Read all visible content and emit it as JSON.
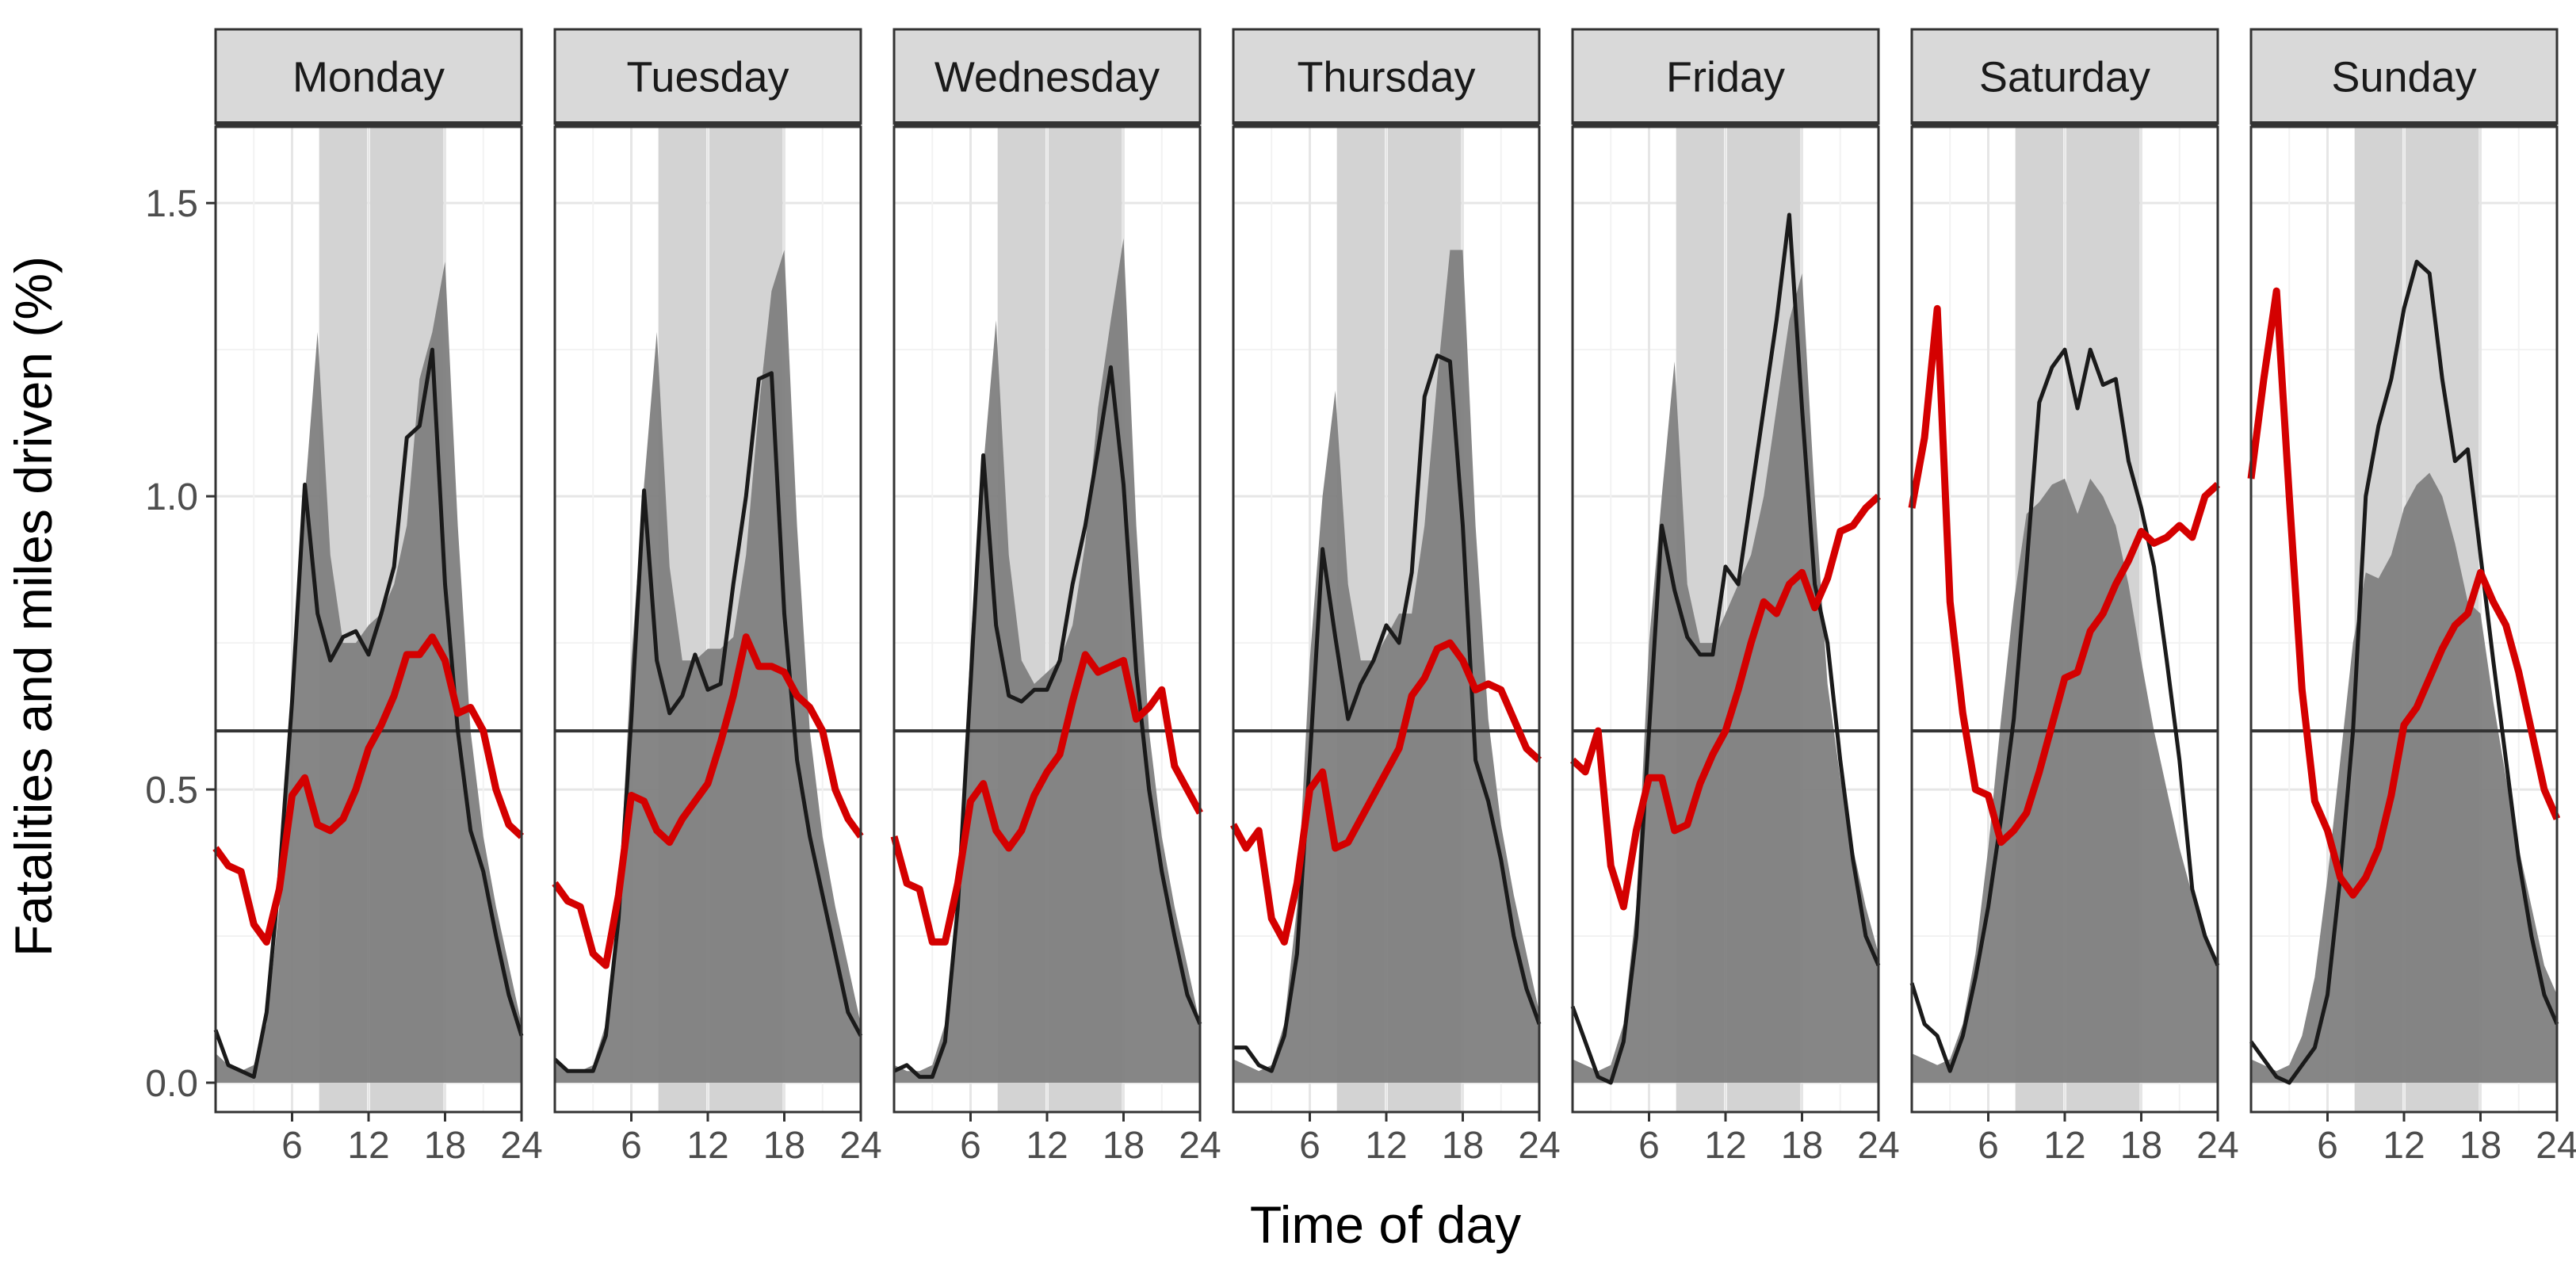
{
  "chart_data": {
    "type": "area",
    "xlabel": "Time of day",
    "ylabel": "Fatalities and miles driven (%)",
    "xlim": [
      0,
      24
    ],
    "ylim": [
      -0.05,
      1.63
    ],
    "x_ticks": [
      6,
      12,
      18,
      24
    ],
    "x_tick_labels": [
      "6",
      "12",
      "18",
      "24"
    ],
    "y_ticks": [
      0.0,
      0.5,
      1.0,
      1.5
    ],
    "y_tick_labels": [
      "0.0",
      "0.5",
      "1.0",
      "1.5"
    ],
    "reference_line": 0.6,
    "highlight_bands": [
      [
        8,
        12
      ],
      [
        12,
        18
      ]
    ],
    "grid": true,
    "colors": {
      "miles_area": "#7f7f7f",
      "highlight_band": "#d3d3d3",
      "all_fatalities_line": "#1a1a1a",
      "red_line": "#d40000",
      "reference_line": "#333333",
      "strip_fill": "#d9d9d9"
    },
    "x": [
      0,
      1,
      2,
      3,
      4,
      5,
      6,
      7,
      8,
      9,
      10,
      11,
      12,
      13,
      14,
      15,
      16,
      17,
      18,
      19,
      20,
      21,
      22,
      23,
      24
    ],
    "panels": [
      {
        "day": "Monday",
        "area": [
          0.05,
          0.03,
          0.02,
          0.03,
          0.1,
          0.3,
          0.7,
          1.0,
          1.28,
          0.9,
          0.75,
          0.75,
          0.78,
          0.8,
          0.85,
          0.95,
          1.2,
          1.28,
          1.4,
          0.95,
          0.6,
          0.42,
          0.3,
          0.2,
          0.1
        ],
        "black": [
          0.09,
          0.03,
          0.02,
          0.01,
          0.12,
          0.35,
          0.65,
          1.02,
          0.8,
          0.72,
          0.76,
          0.77,
          0.73,
          0.8,
          0.88,
          1.1,
          1.12,
          1.25,
          0.85,
          0.6,
          0.43,
          0.36,
          0.25,
          0.15,
          0.08
        ],
        "red": [
          0.4,
          0.37,
          0.36,
          0.27,
          0.24,
          0.33,
          0.49,
          0.52,
          0.44,
          0.43,
          0.45,
          0.5,
          0.57,
          0.61,
          0.66,
          0.73,
          0.73,
          0.76,
          0.72,
          0.63,
          0.64,
          0.6,
          0.5,
          0.44,
          0.42
        ]
      },
      {
        "day": "Tuesday",
        "area": [
          0.04,
          0.02,
          0.02,
          0.03,
          0.1,
          0.3,
          0.72,
          1.02,
          1.28,
          0.88,
          0.72,
          0.72,
          0.74,
          0.74,
          0.76,
          0.9,
          1.15,
          1.35,
          1.42,
          0.95,
          0.6,
          0.42,
          0.3,
          0.2,
          0.1
        ],
        "black": [
          0.04,
          0.02,
          0.02,
          0.02,
          0.08,
          0.28,
          0.62,
          1.01,
          0.72,
          0.63,
          0.66,
          0.73,
          0.67,
          0.68,
          0.85,
          1.0,
          1.2,
          1.21,
          0.8,
          0.55,
          0.42,
          0.32,
          0.22,
          0.12,
          0.08
        ],
        "red": [
          0.34,
          0.31,
          0.3,
          0.22,
          0.2,
          0.32,
          0.49,
          0.48,
          0.43,
          0.41,
          0.45,
          0.48,
          0.51,
          0.58,
          0.66,
          0.76,
          0.71,
          0.71,
          0.7,
          0.66,
          0.64,
          0.6,
          0.5,
          0.45,
          0.42
        ]
      },
      {
        "day": "Wednesday",
        "area": [
          0.03,
          0.02,
          0.02,
          0.03,
          0.1,
          0.3,
          0.75,
          1.05,
          1.3,
          0.9,
          0.72,
          0.68,
          0.7,
          0.72,
          0.78,
          0.92,
          1.15,
          1.3,
          1.44,
          0.95,
          0.6,
          0.42,
          0.3,
          0.2,
          0.1
        ],
        "black": [
          0.02,
          0.03,
          0.01,
          0.01,
          0.07,
          0.3,
          0.68,
          1.07,
          0.78,
          0.66,
          0.65,
          0.67,
          0.67,
          0.72,
          0.85,
          0.95,
          1.08,
          1.22,
          1.02,
          0.7,
          0.5,
          0.36,
          0.25,
          0.15,
          0.1
        ],
        "red": [
          0.42,
          0.34,
          0.33,
          0.24,
          0.24,
          0.34,
          0.48,
          0.51,
          0.43,
          0.4,
          0.43,
          0.49,
          0.53,
          0.56,
          0.65,
          0.73,
          0.7,
          0.71,
          0.72,
          0.62,
          0.64,
          0.67,
          0.54,
          0.5,
          0.46
        ]
      },
      {
        "day": "Thursday",
        "area": [
          0.04,
          0.03,
          0.02,
          0.03,
          0.1,
          0.3,
          0.72,
          1.0,
          1.18,
          0.85,
          0.72,
          0.72,
          0.76,
          0.8,
          0.8,
          0.95,
          1.2,
          1.42,
          1.42,
          0.95,
          0.62,
          0.44,
          0.32,
          0.22,
          0.12
        ],
        "black": [
          0.06,
          0.06,
          0.03,
          0.02,
          0.08,
          0.22,
          0.55,
          0.91,
          0.76,
          0.62,
          0.68,
          0.72,
          0.78,
          0.75,
          0.87,
          1.17,
          1.24,
          1.23,
          0.95,
          0.55,
          0.48,
          0.38,
          0.25,
          0.16,
          0.1
        ],
        "red": [
          0.44,
          0.4,
          0.43,
          0.28,
          0.24,
          0.34,
          0.5,
          0.53,
          0.4,
          0.41,
          0.45,
          0.49,
          0.53,
          0.57,
          0.66,
          0.69,
          0.74,
          0.75,
          0.72,
          0.67,
          0.68,
          0.67,
          0.62,
          0.57,
          0.55
        ]
      },
      {
        "day": "Friday",
        "area": [
          0.04,
          0.03,
          0.02,
          0.03,
          0.1,
          0.3,
          0.75,
          1.0,
          1.23,
          0.85,
          0.75,
          0.75,
          0.8,
          0.85,
          0.9,
          1.0,
          1.15,
          1.3,
          1.38,
          1.0,
          0.68,
          0.52,
          0.4,
          0.3,
          0.22
        ],
        "black": [
          0.13,
          0.07,
          0.01,
          0.0,
          0.07,
          0.25,
          0.6,
          0.95,
          0.84,
          0.76,
          0.73,
          0.73,
          0.88,
          0.85,
          1.0,
          1.15,
          1.3,
          1.48,
          1.15,
          0.85,
          0.75,
          0.55,
          0.38,
          0.25,
          0.2
        ],
        "red": [
          0.55,
          0.53,
          0.6,
          0.37,
          0.3,
          0.43,
          0.52,
          0.52,
          0.43,
          0.44,
          0.51,
          0.56,
          0.6,
          0.67,
          0.75,
          0.82,
          0.8,
          0.85,
          0.87,
          0.81,
          0.86,
          0.94,
          0.95,
          0.98,
          1.0
        ]
      },
      {
        "day": "Saturday",
        "area": [
          0.05,
          0.04,
          0.03,
          0.04,
          0.1,
          0.22,
          0.4,
          0.62,
          0.82,
          0.97,
          0.99,
          1.02,
          1.03,
          0.97,
          1.03,
          1.0,
          0.95,
          0.85,
          0.72,
          0.6,
          0.5,
          0.4,
          0.32,
          0.25,
          0.2
        ],
        "black": [
          0.17,
          0.1,
          0.08,
          0.02,
          0.08,
          0.18,
          0.3,
          0.45,
          0.62,
          0.88,
          1.16,
          1.22,
          1.25,
          1.15,
          1.25,
          1.19,
          1.2,
          1.06,
          0.98,
          0.88,
          0.72,
          0.55,
          0.33,
          0.25,
          0.2
        ],
        "red": [
          0.98,
          1.1,
          1.32,
          0.82,
          0.63,
          0.5,
          0.49,
          0.41,
          0.43,
          0.46,
          0.53,
          0.61,
          0.69,
          0.7,
          0.77,
          0.8,
          0.85,
          0.89,
          0.94,
          0.92,
          0.93,
          0.95,
          0.93,
          1.0,
          1.02
        ]
      },
      {
        "day": "Sunday",
        "area": [
          0.04,
          0.03,
          0.02,
          0.03,
          0.08,
          0.18,
          0.35,
          0.55,
          0.75,
          0.87,
          0.86,
          0.9,
          0.98,
          1.02,
          1.04,
          1.0,
          0.92,
          0.82,
          0.8,
          0.65,
          0.52,
          0.4,
          0.3,
          0.2,
          0.15
        ],
        "black": [
          0.07,
          0.04,
          0.01,
          0.0,
          0.03,
          0.06,
          0.15,
          0.35,
          0.6,
          1.0,
          1.12,
          1.2,
          1.32,
          1.4,
          1.38,
          1.2,
          1.06,
          1.08,
          0.9,
          0.72,
          0.55,
          0.38,
          0.25,
          0.15,
          0.1
        ],
        "red": [
          1.03,
          1.2,
          1.35,
          1.0,
          0.67,
          0.48,
          0.43,
          0.35,
          0.32,
          0.35,
          0.4,
          0.49,
          0.61,
          0.64,
          0.69,
          0.74,
          0.78,
          0.8,
          0.87,
          0.82,
          0.78,
          0.7,
          0.6,
          0.5,
          0.45
        ]
      }
    ]
  }
}
